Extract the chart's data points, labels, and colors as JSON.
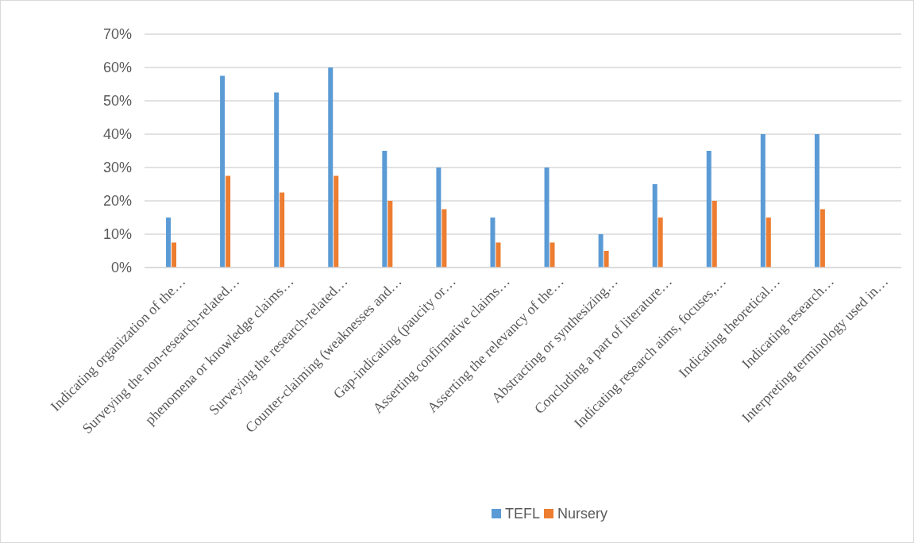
{
  "chart_data": {
    "type": "bar",
    "categories": [
      "Indicating organization of the…",
      "Surveying the non-research-related…",
      "phenomena or knowledge claims…",
      "Surveying the research-related…",
      "Counter-claiming (weaknesses and…",
      "Gap-indicating (paucity or…",
      "Asserting confirmative claims…",
      "Asserting the relevancy of the…",
      "Abstracting or synthesizing…",
      "Concluding a part of literature…",
      "Indicating research aims, focuses,…",
      "Indicating theoretical…",
      "Indicating research…",
      "Interpreting terminology used in…"
    ],
    "series": [
      {
        "name": "TEFL",
        "color": "#5b9bd5",
        "values": [
          15,
          57.5,
          52.5,
          60,
          35,
          30,
          15,
          30,
          10,
          25,
          35,
          40,
          40,
          0
        ]
      },
      {
        "name": "Nursery",
        "color": "#ed7d31",
        "values": [
          7.5,
          27.5,
          22.5,
          27.5,
          20,
          17.5,
          7.5,
          7.5,
          5,
          15,
          20,
          15,
          17.5,
          0
        ]
      }
    ],
    "ylim": [
      0,
      70
    ],
    "yticks": [
      {
        "value": 0,
        "label": "0%"
      },
      {
        "value": 10,
        "label": "10%"
      },
      {
        "value": 20,
        "label": "20%"
      },
      {
        "value": 30,
        "label": "30%"
      },
      {
        "value": 40,
        "label": "40%"
      },
      {
        "value": 50,
        "label": "50%"
      },
      {
        "value": 60,
        "label": "60%"
      },
      {
        "value": 70,
        "label": "70%"
      }
    ],
    "grid": "y",
    "legend": "bottom"
  }
}
